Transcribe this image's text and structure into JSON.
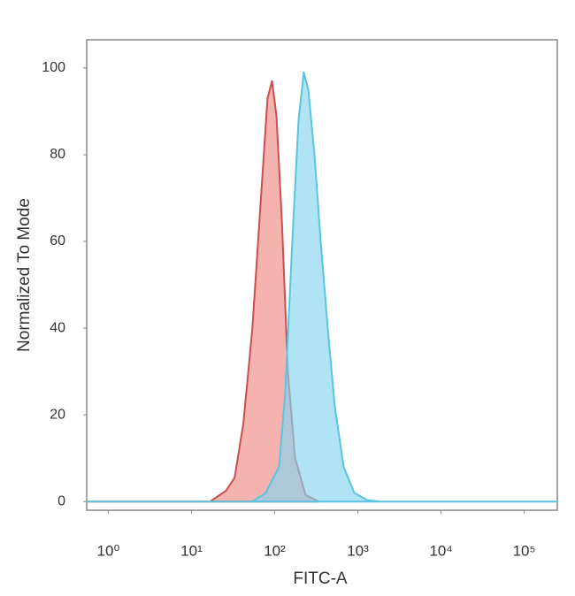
{
  "chart_data": {
    "type": "area",
    "x_label": "FITC-A",
    "y_label": "Normalized To Mode",
    "xscale": "log",
    "xlim": [
      0.55,
      250000
    ],
    "xticks": [
      {
        "value": 1,
        "label": "10⁰"
      },
      {
        "value": 10,
        "label": "10¹"
      },
      {
        "value": 100,
        "label": "10²"
      },
      {
        "value": 1000,
        "label": "10³"
      },
      {
        "value": 10000,
        "label": "10⁴"
      },
      {
        "value": 100000,
        "label": "10⁵"
      }
    ],
    "ylim": [
      -2,
      106.5
    ],
    "yticks": [
      0,
      20,
      40,
      60,
      80,
      100
    ],
    "grid": false,
    "series": [
      {
        "color": "#c9504f",
        "fill": "#f08a84",
        "x": [
          0.55,
          16.7,
          26,
          33,
          42,
          54,
          69,
          82,
          93,
          105,
          122,
          144,
          176,
          236,
          340
        ],
        "values": [
          0,
          0,
          2.5,
          5.5,
          18,
          40,
          71,
          93,
          97,
          89,
          65,
          30,
          10,
          1.5,
          0
        ]
      },
      {
        "color": "#5bc4e0",
        "fill": "#86d4ee",
        "x": [
          0.55,
          54,
          78,
          113,
          134,
          163,
          194,
          224,
          254,
          301,
          357,
          435,
          528,
          676,
          906,
          1309,
          1892,
          250000
        ],
        "values": [
          0,
          0,
          2,
          8,
          25,
          60,
          88,
          99,
          95,
          80,
          60,
          40,
          22,
          8,
          2,
          0.3,
          0,
          0
        ]
      }
    ]
  }
}
